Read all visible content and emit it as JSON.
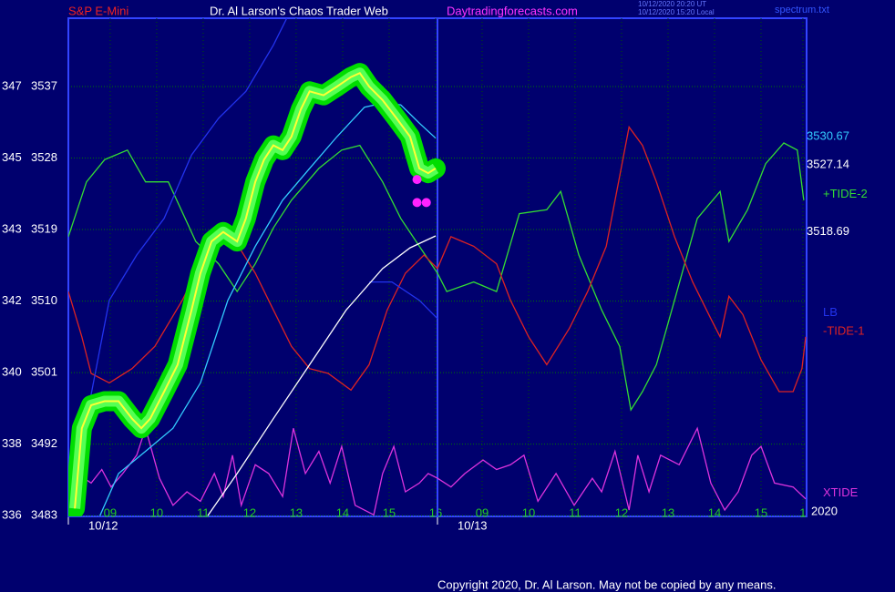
{
  "chart_data": {
    "type": "line",
    "title": "S&P E-Mini",
    "subtitle": "Dr. Al Larson's Chaos Trader Web",
    "website": "Daytradingforecasts.com",
    "timestamps": [
      "10/12/2020 20:20 UT",
      "10/12/2020 15:20 Local"
    ],
    "file": "spectrum.txt",
    "year_label": "2020",
    "copyright": "Copyright 2020, Dr. Al Larson. May not be copied by any means.",
    "grid": true,
    "xlim": [
      -0.9,
      14.98
    ],
    "ylim": [
      3482.9,
      3545.6
    ],
    "yticks": [
      3537,
      3528,
      3519,
      3510,
      3501,
      3492,
      3483
    ],
    "secondary_ylabels": [
      "347",
      "345",
      "343",
      "342",
      "340",
      "338",
      "336"
    ],
    "xticks": [
      {
        "value": 0,
        "label": "09"
      },
      {
        "value": 1,
        "label": "10"
      },
      {
        "value": 2,
        "label": "11"
      },
      {
        "value": 3,
        "label": "12"
      },
      {
        "value": 4,
        "label": "13"
      },
      {
        "value": 5,
        "label": "14"
      },
      {
        "value": 6,
        "label": "15"
      },
      {
        "value": 7,
        "label": "16"
      },
      {
        "value": 8,
        "label": "09"
      },
      {
        "value": 9,
        "label": "10"
      },
      {
        "value": 10,
        "label": "11"
      },
      {
        "value": 11,
        "label": "12"
      },
      {
        "value": 12,
        "label": "13"
      },
      {
        "value": 13,
        "label": "14"
      },
      {
        "value": 14,
        "label": "15"
      },
      {
        "value": 14.9,
        "label": "1"
      }
    ],
    "date_ticks": [
      {
        "value": -0.9,
        "label": "10/12"
      },
      {
        "value": 7.04,
        "label": "10/13"
      }
    ],
    "series": [
      {
        "name": "+TIDE-2",
        "color": "#33dd33",
        "x": [
          -0.9,
          -0.51,
          -0.12,
          0.37,
          0.76,
          1.25,
          1.84,
          2.33,
          2.73,
          3.12,
          3.51,
          3.9,
          4.49,
          4.98,
          5.37,
          5.86,
          6.25,
          6.65,
          7.04,
          7.24,
          7.82,
          8.31,
          8.8,
          9.39,
          9.69,
          10.08,
          10.57,
          10.96,
          11.2,
          11.45,
          11.75,
          12.14,
          12.63,
          13.12,
          13.31,
          13.71,
          14.1,
          14.49,
          14.78,
          14.92
        ],
        "values": [
          3518.1,
          3525.0,
          3527.8,
          3529.0,
          3525.0,
          3525.0,
          3517.5,
          3514.7,
          3511.2,
          3514.7,
          3519.2,
          3522.7,
          3526.7,
          3529.0,
          3529.6,
          3525.0,
          3520.4,
          3516.9,
          3513.5,
          3511.2,
          3512.4,
          3511.2,
          3521.0,
          3521.5,
          3523.8,
          3515.8,
          3508.9,
          3504.3,
          3496.3,
          3498.6,
          3502.0,
          3510.1,
          3520.4,
          3523.8,
          3517.5,
          3521.5,
          3527.3,
          3529.9,
          3529.0,
          3522.7
        ]
      },
      {
        "name": "-TIDE-1",
        "color": "#dd2222",
        "x": [
          -0.9,
          -0.61,
          -0.41,
          -0.02,
          0.47,
          0.96,
          1.55,
          2.14,
          2.63,
          3.12,
          3.51,
          3.9,
          4.29,
          4.69,
          5.18,
          5.57,
          5.96,
          6.35,
          6.75,
          7.04,
          7.33,
          7.82,
          8.31,
          8.61,
          9.0,
          9.39,
          9.88,
          10.27,
          10.67,
          11.16,
          11.45,
          11.75,
          12.14,
          12.53,
          12.92,
          13.12,
          13.31,
          13.61,
          14.0,
          14.39,
          14.69,
          14.88,
          14.96
        ],
        "values": [
          3511.2,
          3505.5,
          3500.9,
          3499.7,
          3501.5,
          3504.3,
          3510.1,
          3516.9,
          3518.1,
          3513.5,
          3508.9,
          3504.3,
          3501.5,
          3500.9,
          3498.8,
          3502.0,
          3508.9,
          3513.5,
          3515.8,
          3514.1,
          3518.1,
          3516.9,
          3514.7,
          3510.1,
          3505.5,
          3502.0,
          3506.6,
          3511.2,
          3516.9,
          3531.9,
          3529.6,
          3525.0,
          3518.1,
          3512.4,
          3507.8,
          3505.5,
          3510.6,
          3508.3,
          3502.6,
          3498.6,
          3498.6,
          3501.5,
          3505.5
        ]
      },
      {
        "name": "XTIDE",
        "color": "#dd33dd",
        "x": [
          -0.9,
          -0.71,
          -0.41,
          -0.18,
          0.02,
          0.27,
          0.57,
          0.76,
          1.06,
          1.35,
          1.65,
          1.94,
          2.24,
          2.43,
          2.63,
          2.82,
          3.12,
          3.41,
          3.71,
          3.94,
          4.2,
          4.49,
          4.73,
          4.98,
          5.27,
          5.67,
          5.86,
          6.1,
          6.35,
          6.65,
          6.84,
          7.04,
          7.33,
          7.63,
          8.02,
          8.31,
          8.61,
          8.9,
          9.2,
          9.59,
          9.98,
          10.37,
          10.57,
          10.86,
          11.16,
          11.35,
          11.59,
          11.84,
          12.24,
          12.63,
          12.92,
          13.22,
          13.51,
          13.8,
          14.0,
          14.29,
          14.69,
          14.96
        ],
        "values": [
          3486.0,
          3488.3,
          3487.1,
          3488.8,
          3486.6,
          3488.3,
          3490.6,
          3494.0,
          3487.7,
          3484.3,
          3486.0,
          3484.8,
          3488.3,
          3485.4,
          3490.6,
          3484.3,
          3489.4,
          3488.3,
          3485.4,
          3494.0,
          3488.3,
          3491.1,
          3487.1,
          3491.7,
          3484.3,
          3483.1,
          3488.3,
          3491.7,
          3486.0,
          3487.1,
          3488.3,
          3487.7,
          3486.6,
          3488.3,
          3490.0,
          3488.8,
          3489.4,
          3490.6,
          3484.8,
          3488.3,
          3484.3,
          3487.7,
          3486.0,
          3491.1,
          3483.7,
          3490.6,
          3486.0,
          3490.6,
          3489.4,
          3494.0,
          3487.1,
          3483.7,
          3486.0,
          3490.6,
          3491.7,
          3487.1,
          3486.6,
          3485.1
        ]
      },
      {
        "name": "LB",
        "color": "#2233ee",
        "x": [
          -0.8,
          -0.51,
          -0.02,
          0.57,
          1.16,
          1.75,
          2.33,
          2.92,
          3.51,
          3.8,
          4.5,
          5.57,
          6.06,
          6.65,
          7.04
        ],
        "values": [
          3486.0,
          3495.2,
          3510.1,
          3515.8,
          3520.4,
          3528.4,
          3533.0,
          3536.4,
          3542.2,
          3545.6,
          null,
          3512.4,
          3512.4,
          3510.1,
          3507.8
        ]
      },
      {
        "color": "#ffffff",
        "end_label": 3518.69,
        "x": [
          2.1,
          2.73,
          3.51,
          4.29,
          5.08,
          5.86,
          6.45,
          7.0
        ],
        "values": [
          3483.0,
          3488.3,
          3495.2,
          3502.0,
          3508.9,
          3514.1,
          3516.7,
          3518.2
        ]
      },
      {
        "color": "#33ccff",
        "end_label": 3530.67,
        "x": [
          -0.22,
          0.18,
          0.76,
          1.35,
          1.94,
          2.53,
          3.12,
          3.71,
          4.29,
          4.88,
          5.47,
          5.86,
          6.25,
          6.65,
          7.0
        ],
        "values": [
          3483.0,
          3488.3,
          3491.1,
          3494.0,
          3499.7,
          3510.1,
          3516.9,
          3522.7,
          3526.7,
          3530.7,
          3534.4,
          3534.9,
          3534.7,
          3532.4,
          3530.5
        ]
      },
      {
        "color": "#ffff33",
        "glow_color": "#00dd00",
        "end_label": 3527.14,
        "x": [
          -0.76,
          -0.61,
          -0.41,
          -0.12,
          0.18,
          0.47,
          0.67,
          0.86,
          1.16,
          1.45,
          1.75,
          1.94,
          2.18,
          2.43,
          2.73,
          2.92,
          3.12,
          3.31,
          3.51,
          3.71,
          3.9,
          4.1,
          4.29,
          4.59,
          4.88,
          5.18,
          5.37,
          5.57,
          5.86,
          6.16,
          6.45,
          6.65,
          6.84,
          7.0
        ],
        "values": [
          3483.9,
          3494.0,
          3496.9,
          3497.4,
          3497.4,
          3495.2,
          3494.0,
          3495.2,
          3498.6,
          3502.0,
          3508.9,
          3513.5,
          3517.5,
          3518.7,
          3517.5,
          3520.4,
          3525.0,
          3527.8,
          3529.6,
          3529.0,
          3530.7,
          3534.1,
          3536.4,
          3535.9,
          3537.0,
          3538.2,
          3538.7,
          3537.0,
          3535.3,
          3533.0,
          3530.7,
          3526.7,
          3526.1,
          3526.7
        ]
      }
    ],
    "markers": {
      "color": "#ff22ff",
      "x": [
        6.6,
        6.6,
        6.8
      ],
      "values": [
        3525.3,
        3522.4,
        3522.4
      ]
    }
  }
}
